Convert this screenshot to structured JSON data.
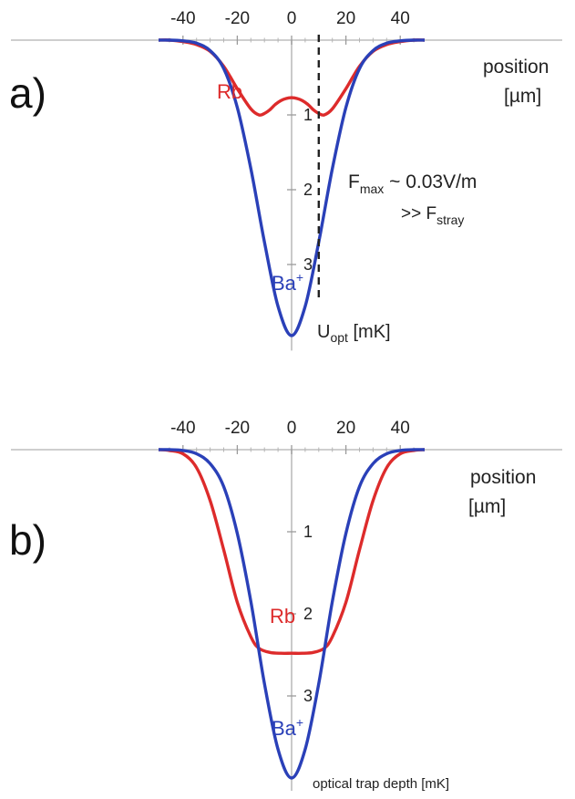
{
  "chart_data": [
    {
      "panel": "a)",
      "type": "line",
      "x_ticks": [
        "-40",
        "-20",
        "0",
        "20",
        "40"
      ],
      "y_ticks": [
        "1",
        "2",
        "3"
      ],
      "xlim": [
        -49,
        49
      ],
      "ylim": [
        0,
        4.2
      ],
      "y_inverted": true,
      "xlabel": [
        "position",
        "[µm]"
      ],
      "ylabel": {
        "main": "U",
        "sub": "opt",
        "rest": " [mK]"
      },
      "series": [
        {
          "name": "Rb",
          "color": "#dd2b2b",
          "x": [
            -49,
            -45,
            -40,
            -35,
            -30,
            -25,
            -20,
            -15,
            -12,
            -10,
            -8,
            -6,
            -4,
            -2,
            0,
            2,
            4,
            6,
            8,
            10,
            12,
            15,
            20,
            25,
            30,
            35,
            40,
            45,
            49
          ],
          "y": [
            0.0,
            0.0,
            0.02,
            0.06,
            0.15,
            0.35,
            0.65,
            0.92,
            1.0,
            0.98,
            0.93,
            0.86,
            0.81,
            0.78,
            0.77,
            0.78,
            0.81,
            0.86,
            0.93,
            0.98,
            1.0,
            0.92,
            0.65,
            0.35,
            0.15,
            0.06,
            0.02,
            0.0,
            0.0
          ]
        },
        {
          "name": "Ba",
          "sup": "+",
          "color": "#2a40b8",
          "x": [
            -49,
            -45,
            -40,
            -35,
            -30,
            -25,
            -20,
            -15,
            -10,
            -5,
            0,
            5,
            10,
            15,
            20,
            25,
            30,
            35,
            40,
            45,
            49
          ],
          "y": [
            0.0,
            0.0,
            0.01,
            0.04,
            0.14,
            0.38,
            0.9,
            1.72,
            2.7,
            3.56,
            3.95,
            3.56,
            2.7,
            1.72,
            0.9,
            0.38,
            0.14,
            0.04,
            0.01,
            0.0,
            0.0
          ]
        }
      ],
      "vline_x": 10,
      "annotation": {
        "line1_main": "F",
        "line1_sub": "max",
        "line1_rest": " ~  0.03V/m",
        "line2_main": ">> F",
        "line2_sub": "stray"
      }
    },
    {
      "panel": "b)",
      "type": "line",
      "x_ticks": [
        "-40",
        "-20",
        "0",
        "20",
        "40"
      ],
      "y_ticks": [
        "1",
        "2",
        "3"
      ],
      "xlim": [
        -49,
        49
      ],
      "ylim": [
        0,
        4.2
      ],
      "y_inverted": true,
      "xlabel": [
        "position",
        "[µm]"
      ],
      "ylabel": {
        "main": "optical trap depth [mK]",
        "sub": "",
        "rest": ""
      },
      "series": [
        {
          "name": "Rb",
          "color": "#dd2b2b",
          "x": [
            -49,
            -45,
            -40,
            -35,
            -30,
            -25,
            -20,
            -15,
            -12,
            -8,
            -4,
            0,
            4,
            8,
            12,
            15,
            20,
            25,
            30,
            35,
            40,
            45,
            49
          ],
          "y": [
            0.0,
            0.01,
            0.05,
            0.22,
            0.62,
            1.22,
            1.86,
            2.28,
            2.42,
            2.47,
            2.48,
            2.48,
            2.48,
            2.47,
            2.42,
            2.28,
            1.86,
            1.22,
            0.62,
            0.22,
            0.05,
            0.01,
            0.0
          ]
        },
        {
          "name": "Ba",
          "sup": "+",
          "color": "#2a40b8",
          "x": [
            -49,
            -45,
            -40,
            -35,
            -30,
            -25,
            -20,
            -15,
            -10,
            -5,
            0,
            5,
            10,
            15,
            20,
            25,
            30,
            35,
            40,
            45,
            49
          ],
          "y": [
            0.0,
            0.0,
            0.01,
            0.05,
            0.17,
            0.45,
            1.02,
            1.85,
            2.85,
            3.65,
            4.0,
            3.65,
            2.85,
            1.85,
            1.02,
            0.45,
            0.17,
            0.05,
            0.01,
            0.0,
            0.0
          ]
        }
      ]
    }
  ]
}
